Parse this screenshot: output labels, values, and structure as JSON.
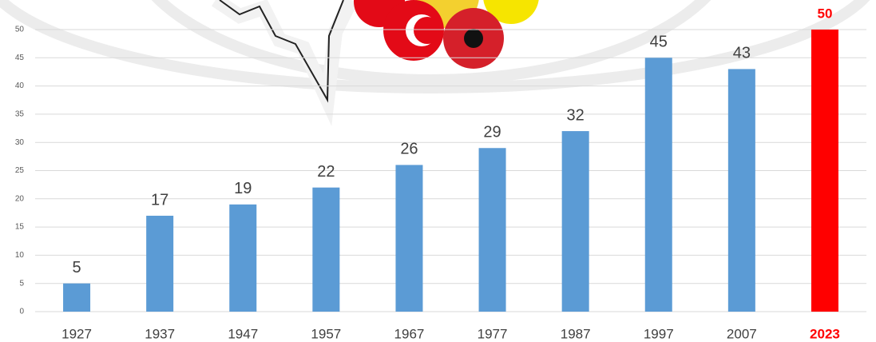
{
  "chart_data": {
    "type": "bar",
    "categories": [
      "1927",
      "1937",
      "1947",
      "1957",
      "1967",
      "1977",
      "1987",
      "1997",
      "2007",
      "2023"
    ],
    "values": [
      5,
      17,
      19,
      22,
      26,
      29,
      32,
      45,
      43,
      50
    ],
    "colors": [
      "#5b9bd5",
      "#5b9bd5",
      "#5b9bd5",
      "#5b9bd5",
      "#5b9bd5",
      "#5b9bd5",
      "#5b9bd5",
      "#5b9bd5",
      "#5b9bd5",
      "#ff0000"
    ],
    "ylim": [
      0,
      50
    ],
    "yticks": [
      0,
      5,
      10,
      15,
      20,
      25,
      30,
      35,
      40,
      45,
      50
    ],
    "grid": true
  }
}
